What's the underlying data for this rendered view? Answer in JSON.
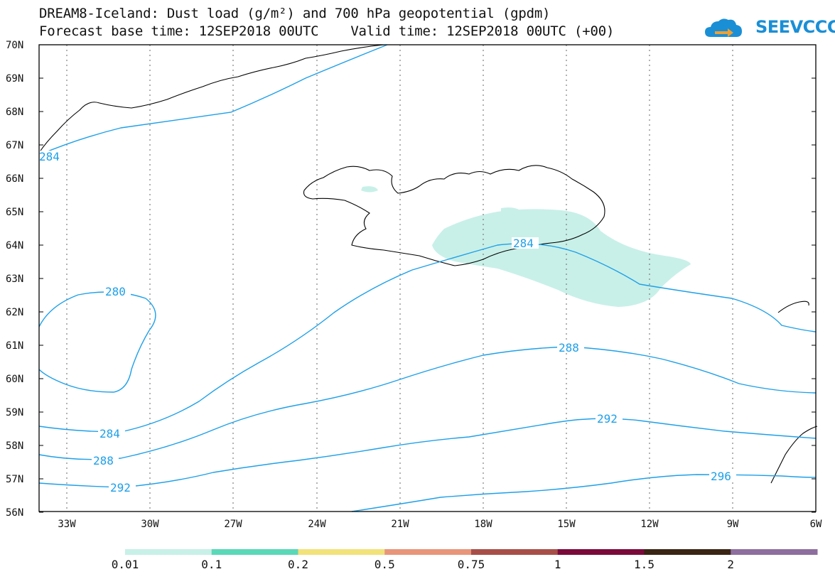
{
  "title_line1": "DREAM8-Iceland: Dust load (g/m²) and 700 hPa geopotential (gpdm)",
  "title_line2": "Forecast base time: 12SEP2018 00UTC    Valid time: 12SEP2018 00UTC (+00)",
  "logo_text": "SEEVCCC",
  "map": {
    "lat_labels": [
      "70N",
      "69N",
      "68N",
      "67N",
      "66N",
      "65N",
      "64N",
      "63N",
      "62N",
      "61N",
      "60N",
      "59N",
      "58N",
      "57N",
      "56N"
    ],
    "lon_labels": [
      "33W",
      "30W",
      "27W",
      "24W",
      "21W",
      "18W",
      "15W",
      "12W",
      "9W",
      "6W"
    ],
    "contour_labels": [
      "284",
      "280",
      "284",
      "288",
      "284",
      "288",
      "292",
      "292",
      "296"
    ]
  },
  "colorbar": {
    "labels": [
      "0.01",
      "0.1",
      "0.2",
      "0.5",
      "0.75",
      "1",
      "1.5",
      "2"
    ],
    "colors": [
      "#c8f0e8",
      "#5ad8b8",
      "#f2e27a",
      "#e8957a",
      "#a84e48",
      "#7a0a3a",
      "#3a2414",
      "#8e6e9e"
    ]
  },
  "colors": {
    "contour": "#1ea0e8",
    "dust_fill": "#c8f0e8",
    "coast": "#000000"
  }
}
